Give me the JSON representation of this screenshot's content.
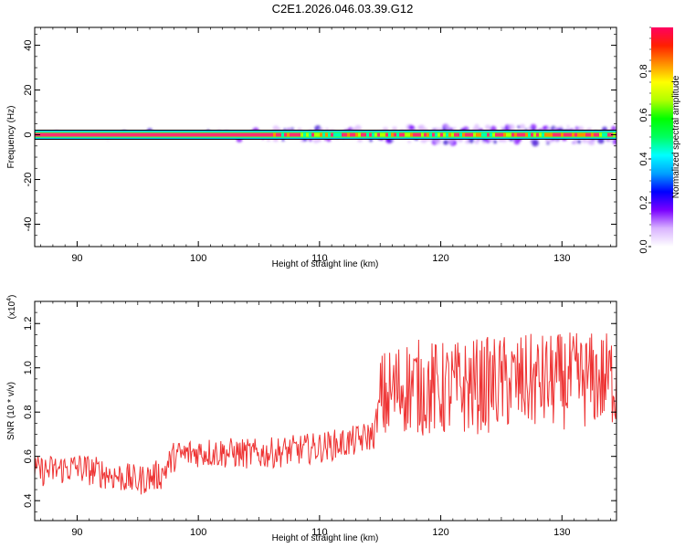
{
  "title": "C2E1.2026.046.03.39.G12",
  "chart_data": [
    {
      "type": "heatmap",
      "name": "spectrogram",
      "xlabel": "Height of straight line (km)",
      "ylabel": "Frequency (Hz)",
      "xlim": [
        86.5,
        134.5
      ],
      "ylim": [
        -50,
        48
      ],
      "x_ticks": [
        90,
        100,
        110,
        120,
        130
      ],
      "y_ticks": [
        40,
        20,
        0,
        -20,
        -40
      ],
      "y_tick_labels": [
        "40",
        "20",
        "0",
        "-20",
        "-40"
      ],
      "ridge_frequency": 0,
      "colorbar": {
        "label": "Normalized spectral amplitude",
        "range": [
          0,
          1
        ],
        "ticks": [
          0.0,
          0.2,
          0.4,
          0.6,
          0.8
        ],
        "tick_labels": [
          "0.0",
          "0.2",
          "0.4",
          "0.6",
          "0.8"
        ],
        "colors": [
          "#ffffff",
          "#d9b3ff",
          "#7a00ff",
          "#0000ff",
          "#00a0ff",
          "#00ffff",
          "#00ff60",
          "#00ff00",
          "#b0ff00",
          "#ffff00",
          "#ff9000",
          "#ff2000",
          "#ff0060"
        ]
      }
    },
    {
      "type": "line",
      "name": "snr",
      "xlabel": "Height of straight line (km)",
      "ylabel": "SNR (10 * v/v)",
      "y_scale_note": "(x10^4)",
      "xlim": [
        86.5,
        134.5
      ],
      "ylim": [
        0.31,
        1.3
      ],
      "x_ticks": [
        90,
        100,
        110,
        120,
        130
      ],
      "y_ticks": [
        0.4,
        0.6,
        0.8,
        1.0,
        1.2
      ],
      "y_tick_labels": [
        "0.4",
        "0.6",
        "0.8",
        "1.0",
        "1.2"
      ],
      "color": "#ee3333",
      "series": [
        {
          "name": "SNR trend",
          "x": [
            86.5,
            90,
            95,
            97,
            98,
            100,
            105,
            110,
            113,
            114.5,
            115,
            117,
            120,
            125,
            130,
            134.5
          ],
          "values": [
            0.53,
            0.55,
            0.49,
            0.52,
            0.6,
            0.62,
            0.61,
            0.64,
            0.67,
            0.7,
            0.85,
            0.92,
            0.9,
            0.93,
            0.94,
            0.95
          ]
        }
      ]
    }
  ]
}
